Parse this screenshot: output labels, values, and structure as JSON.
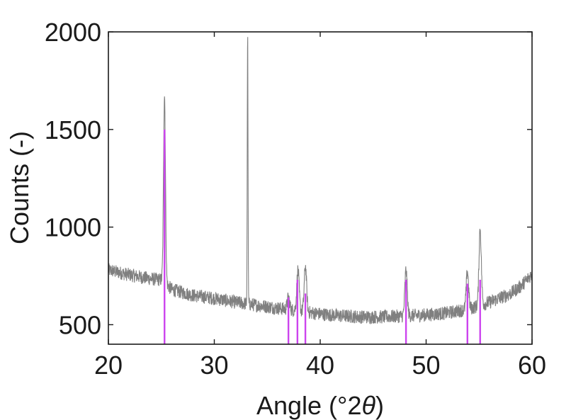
{
  "chart_data": {
    "type": "line",
    "xlabel_prefix": "Angle (°2",
    "xlabel_symbol": "θ",
    "xlabel_suffix": ")",
    "ylabel": "Counts (-)",
    "xlim": [
      20,
      60
    ],
    "ylim": [
      400,
      2000
    ],
    "x_ticks": [
      20,
      30,
      40,
      50,
      60
    ],
    "y_ticks": [
      500,
      1000,
      1500,
      2000
    ],
    "grid": false,
    "legend": "none",
    "colors": {
      "pattern": "#808080",
      "reference": "#cc44ee",
      "axis": "#1a1a1a"
    },
    "baseline_profile": {
      "x": [
        20,
        22,
        24,
        25,
        26,
        27,
        28,
        30,
        32,
        34,
        36,
        38,
        40,
        42,
        44,
        46,
        48,
        50,
        52,
        54,
        56,
        58,
        59,
        60
      ],
      "y": [
        780,
        755,
        735,
        730,
        680,
        665,
        650,
        635,
        615,
        600,
        585,
        570,
        555,
        545,
        540,
        540,
        545,
        550,
        560,
        580,
        615,
        660,
        700,
        760
      ]
    },
    "measured_peaks": [
      {
        "x": 25.3,
        "y": 1680
      },
      {
        "x": 33.15,
        "y": 2000
      },
      {
        "x": 37.0,
        "y": 640
      },
      {
        "x": 37.9,
        "y": 780
      },
      {
        "x": 38.6,
        "y": 800
      },
      {
        "x": 48.1,
        "y": 780
      },
      {
        "x": 53.9,
        "y": 775
      },
      {
        "x": 55.1,
        "y": 990
      }
    ],
    "reference_lines": {
      "x": [
        25.3,
        37.0,
        37.85,
        38.6,
        48.1,
        53.9,
        55.1
      ],
      "y": [
        1500,
        640,
        730,
        660,
        730,
        710,
        730
      ]
    }
  }
}
